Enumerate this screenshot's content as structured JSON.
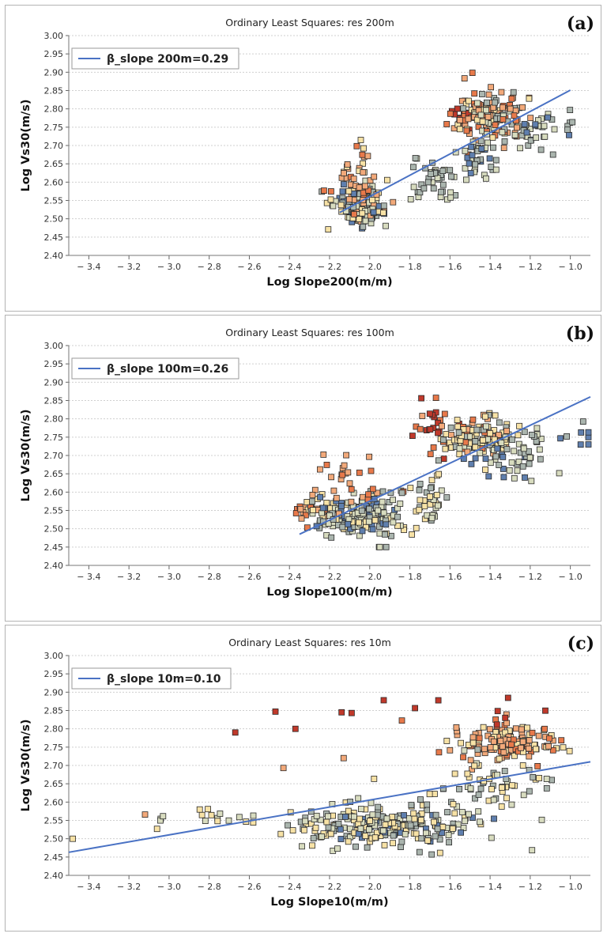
{
  "colors": {
    "regression_line": "#4a72c4",
    "grid": "#cfcfcf",
    "palette": [
      "#c0392b",
      "#e8794a",
      "#f2a97a",
      "#f7e2a6",
      "#d8dcbf",
      "#aab5ae",
      "#5f7fae"
    ]
  },
  "chart_data": [
    {
      "type": "scatter",
      "panel_label": "(a)",
      "title": "Ordinary Least Squares: res 200m",
      "xlabel": "Log Slope200(m/m)",
      "ylabel": "Log Vs30(m/s)",
      "xlim": [
        -3.5,
        -0.9
      ],
      "ylim": [
        2.4,
        3.0
      ],
      "x_ticks": [
        "-3.4",
        "-3.2",
        "-3.0",
        "-2.8",
        "-2.6",
        "-2.4",
        "-2.2",
        "-2.0",
        "-1.8",
        "-1.6",
        "-1.4",
        "-1.2",
        "-1.0"
      ],
      "y_ticks": [
        "2.40",
        "2.45",
        "2.50",
        "2.55",
        "2.60",
        "2.65",
        "2.70",
        "2.75",
        "2.80",
        "2.85",
        "2.90",
        "2.95",
        "3.00"
      ],
      "legend": "β_slope 200m=0.29",
      "legend_position": "top-left",
      "regression_line": {
        "x": [
          -2.15,
          -1.0
        ],
        "y": [
          2.517,
          2.851
        ]
      },
      "clusters": [
        {
          "cx": -2.05,
          "cy": 2.535,
          "sx": 0.06,
          "sy": 0.028,
          "n": 150,
          "colors": [
            3,
            4,
            5,
            5,
            4,
            2,
            6
          ]
        },
        {
          "cx": -2.07,
          "cy": 2.6,
          "sx": 0.07,
          "sy": 0.045,
          "n": 40,
          "colors": [
            2,
            1,
            2,
            3
          ]
        },
        {
          "cx": -1.68,
          "cy": 2.6,
          "sx": 0.05,
          "sy": 0.03,
          "n": 40,
          "colors": [
            5,
            4,
            5
          ]
        },
        {
          "cx": -1.53,
          "cy": 2.79,
          "sx": 0.05,
          "sy": 0.05,
          "n": 30,
          "colors": [
            0,
            0,
            1,
            2
          ]
        },
        {
          "cx": -1.38,
          "cy": 2.77,
          "sx": 0.08,
          "sy": 0.035,
          "n": 130,
          "colors": [
            3,
            2,
            2,
            1,
            4,
            5
          ]
        },
        {
          "cx": -1.45,
          "cy": 2.66,
          "sx": 0.05,
          "sy": 0.03,
          "n": 35,
          "colors": [
            5,
            4,
            6
          ]
        },
        {
          "cx": -1.17,
          "cy": 2.73,
          "sx": 0.06,
          "sy": 0.03,
          "n": 25,
          "colors": [
            5,
            6,
            4
          ]
        },
        {
          "cx": -1.01,
          "cy": 2.765,
          "sx": 0.01,
          "sy": 0.015,
          "n": 6,
          "colors": [
            5,
            6
          ]
        }
      ]
    },
    {
      "type": "scatter",
      "panel_label": "(b)",
      "title": "Ordinary Least Squares: res 100m",
      "xlabel": "Log Slope100(m/m)",
      "ylabel": "Log Vs30(m/s)",
      "xlim": [
        -3.5,
        -0.9
      ],
      "ylim": [
        2.4,
        3.0
      ],
      "x_ticks": [
        "-3.4",
        "-3.2",
        "-3.0",
        "-2.8",
        "-2.6",
        "-2.4",
        "-2.2",
        "-2.0",
        "-1.8",
        "-1.6",
        "-1.4",
        "-1.2",
        "-1.0"
      ],
      "y_ticks": [
        "2.40",
        "2.45",
        "2.50",
        "2.55",
        "2.60",
        "2.65",
        "2.70",
        "2.75",
        "2.80",
        "2.85",
        "2.90",
        "2.95",
        "3.00"
      ],
      "legend": "β_slope 100m=0.26",
      "legend_position": "top-left",
      "regression_line": {
        "x": [
          -2.35,
          -0.9
        ],
        "y": [
          2.485,
          2.86
        ]
      },
      "clusters": [
        {
          "cx": -2.28,
          "cy": 2.55,
          "sx": 0.05,
          "sy": 0.012,
          "n": 30,
          "colors": [
            2,
            1,
            3
          ]
        },
        {
          "cx": -2.05,
          "cy": 2.535,
          "sx": 0.12,
          "sy": 0.03,
          "n": 170,
          "colors": [
            3,
            4,
            5,
            5,
            4,
            6
          ]
        },
        {
          "cx": -2.1,
          "cy": 2.62,
          "sx": 0.1,
          "sy": 0.04,
          "n": 30,
          "colors": [
            2,
            1,
            2
          ]
        },
        {
          "cx": -1.7,
          "cy": 2.58,
          "sx": 0.05,
          "sy": 0.03,
          "n": 35,
          "colors": [
            5,
            4,
            3
          ]
        },
        {
          "cx": -1.68,
          "cy": 2.8,
          "sx": 0.04,
          "sy": 0.04,
          "n": 22,
          "colors": [
            0,
            0,
            1
          ]
        },
        {
          "cx": -1.45,
          "cy": 2.75,
          "sx": 0.1,
          "sy": 0.03,
          "n": 130,
          "colors": [
            3,
            2,
            1,
            4,
            5,
            3
          ]
        },
        {
          "cx": -1.35,
          "cy": 2.68,
          "sx": 0.1,
          "sy": 0.04,
          "n": 30,
          "colors": [
            5,
            6,
            4
          ]
        },
        {
          "cx": -1.2,
          "cy": 2.73,
          "sx": 0.03,
          "sy": 0.03,
          "n": 20,
          "colors": [
            5,
            4
          ]
        },
        {
          "cx": -0.97,
          "cy": 2.76,
          "sx": 0.04,
          "sy": 0.02,
          "n": 8,
          "colors": [
            5,
            6
          ]
        }
      ]
    },
    {
      "type": "scatter",
      "panel_label": "(c)",
      "title": "Ordinary Least Squares: res 10m",
      "xlabel": "Log Slope10(m/m)",
      "ylabel": "Log Vs30(m/s)",
      "xlim": [
        -3.5,
        -0.9
      ],
      "ylim": [
        2.4,
        3.0
      ],
      "x_ticks": [
        "-3.4",
        "-3.2",
        "-3.0",
        "-2.8",
        "-2.6",
        "-2.4",
        "-2.2",
        "-2.0",
        "-1.8",
        "-1.6",
        "-1.4",
        "-1.2",
        "-1.0"
      ],
      "y_ticks": [
        "2.40",
        "2.45",
        "2.50",
        "2.55",
        "2.60",
        "2.65",
        "2.70",
        "2.75",
        "2.80",
        "2.85",
        "2.90",
        "2.95",
        "3.00"
      ],
      "legend": "β_slope 10m=0.10",
      "legend_position": "top-left",
      "regression_line": {
        "x": [
          -3.5,
          -0.9
        ],
        "y": [
          2.463,
          2.71
        ]
      },
      "clusters": [
        {
          "cx": -1.9,
          "cy": 2.54,
          "sx": 0.22,
          "sy": 0.03,
          "n": 240,
          "colors": [
            4,
            5,
            3,
            4,
            5,
            3,
            6
          ]
        },
        {
          "cx": -2.7,
          "cy": 2.56,
          "sx": 0.25,
          "sy": 0.012,
          "n": 20,
          "colors": [
            3,
            4
          ]
        },
        {
          "cx": -1.3,
          "cy": 2.76,
          "sx": 0.12,
          "sy": 0.025,
          "n": 150,
          "colors": [
            2,
            1,
            2,
            3
          ]
        },
        {
          "cx": -1.4,
          "cy": 2.64,
          "sx": 0.2,
          "sy": 0.04,
          "n": 60,
          "colors": [
            3,
            4,
            5
          ]
        },
        {
          "cx": -1.6,
          "cy": 2.8,
          "sx": 0.35,
          "sy": 0.05,
          "n": 10,
          "colors": [
            0,
            1
          ]
        }
      ],
      "extra_points": [
        {
          "x": -3.48,
          "y": 2.5,
          "c": 3
        },
        {
          "x": -3.12,
          "y": 2.566,
          "c": 2
        },
        {
          "x": -3.06,
          "y": 2.527,
          "c": 3
        },
        {
          "x": -2.67,
          "y": 2.79,
          "c": 0
        },
        {
          "x": -2.47,
          "y": 2.847,
          "c": 0
        },
        {
          "x": -2.37,
          "y": 2.8,
          "c": 0
        },
        {
          "x": -2.43,
          "y": 2.693,
          "c": 2
        },
        {
          "x": -2.14,
          "y": 2.845,
          "c": 0
        },
        {
          "x": -2.09,
          "y": 2.843,
          "c": 0
        },
        {
          "x": -1.93,
          "y": 2.878,
          "c": 0
        },
        {
          "x": -2.13,
          "y": 2.72,
          "c": 2
        }
      ]
    }
  ]
}
